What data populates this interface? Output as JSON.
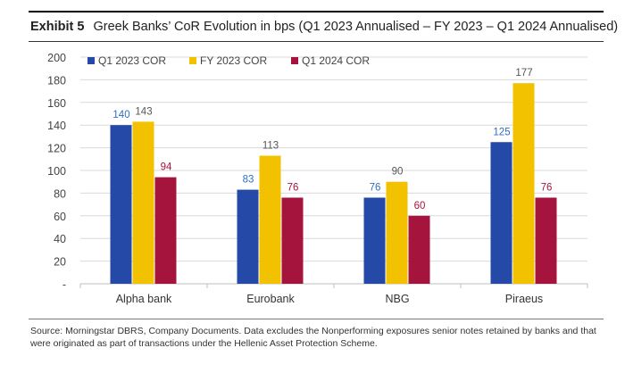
{
  "header": {
    "exhibit": "Exhibit 5",
    "title": "Greek Banks’ CoR Evolution in bps (Q1 2023 Annualised – FY 2023 – Q1 2024 Annualised)"
  },
  "colors": {
    "q1_2023": "#2449a6",
    "fy_2023": "#f2c200",
    "q1_2024": "#a5143c",
    "grid": "#d9d9d9",
    "axis_text": "#444444"
  },
  "chart_data": {
    "type": "bar",
    "categories": [
      "Alpha bank",
      "Eurobank",
      "NBG",
      "Piraeus"
    ],
    "series": [
      {
        "name": "Q1 2023 COR",
        "values": [
          140,
          83,
          76,
          125
        ]
      },
      {
        "name": "FY 2023 COR",
        "values": [
          143,
          113,
          90,
          177
        ]
      },
      {
        "name": "Q1 2024 COR",
        "values": [
          94,
          76,
          60,
          76
        ]
      }
    ],
    "yticks": [
      "200",
      "180",
      "160",
      "140",
      "120",
      "100",
      "80",
      "60",
      "40",
      "20",
      "-"
    ],
    "ylim": [
      0,
      200
    ],
    "grid": true,
    "legend_position": "top-left"
  },
  "footer": {
    "source": "Source: Morningstar DBRS, Company Documents. Data excludes the Nonperforming exposures senior notes retained by banks and that were originated as part of transactions under the Hellenic Asset Protection Scheme."
  }
}
